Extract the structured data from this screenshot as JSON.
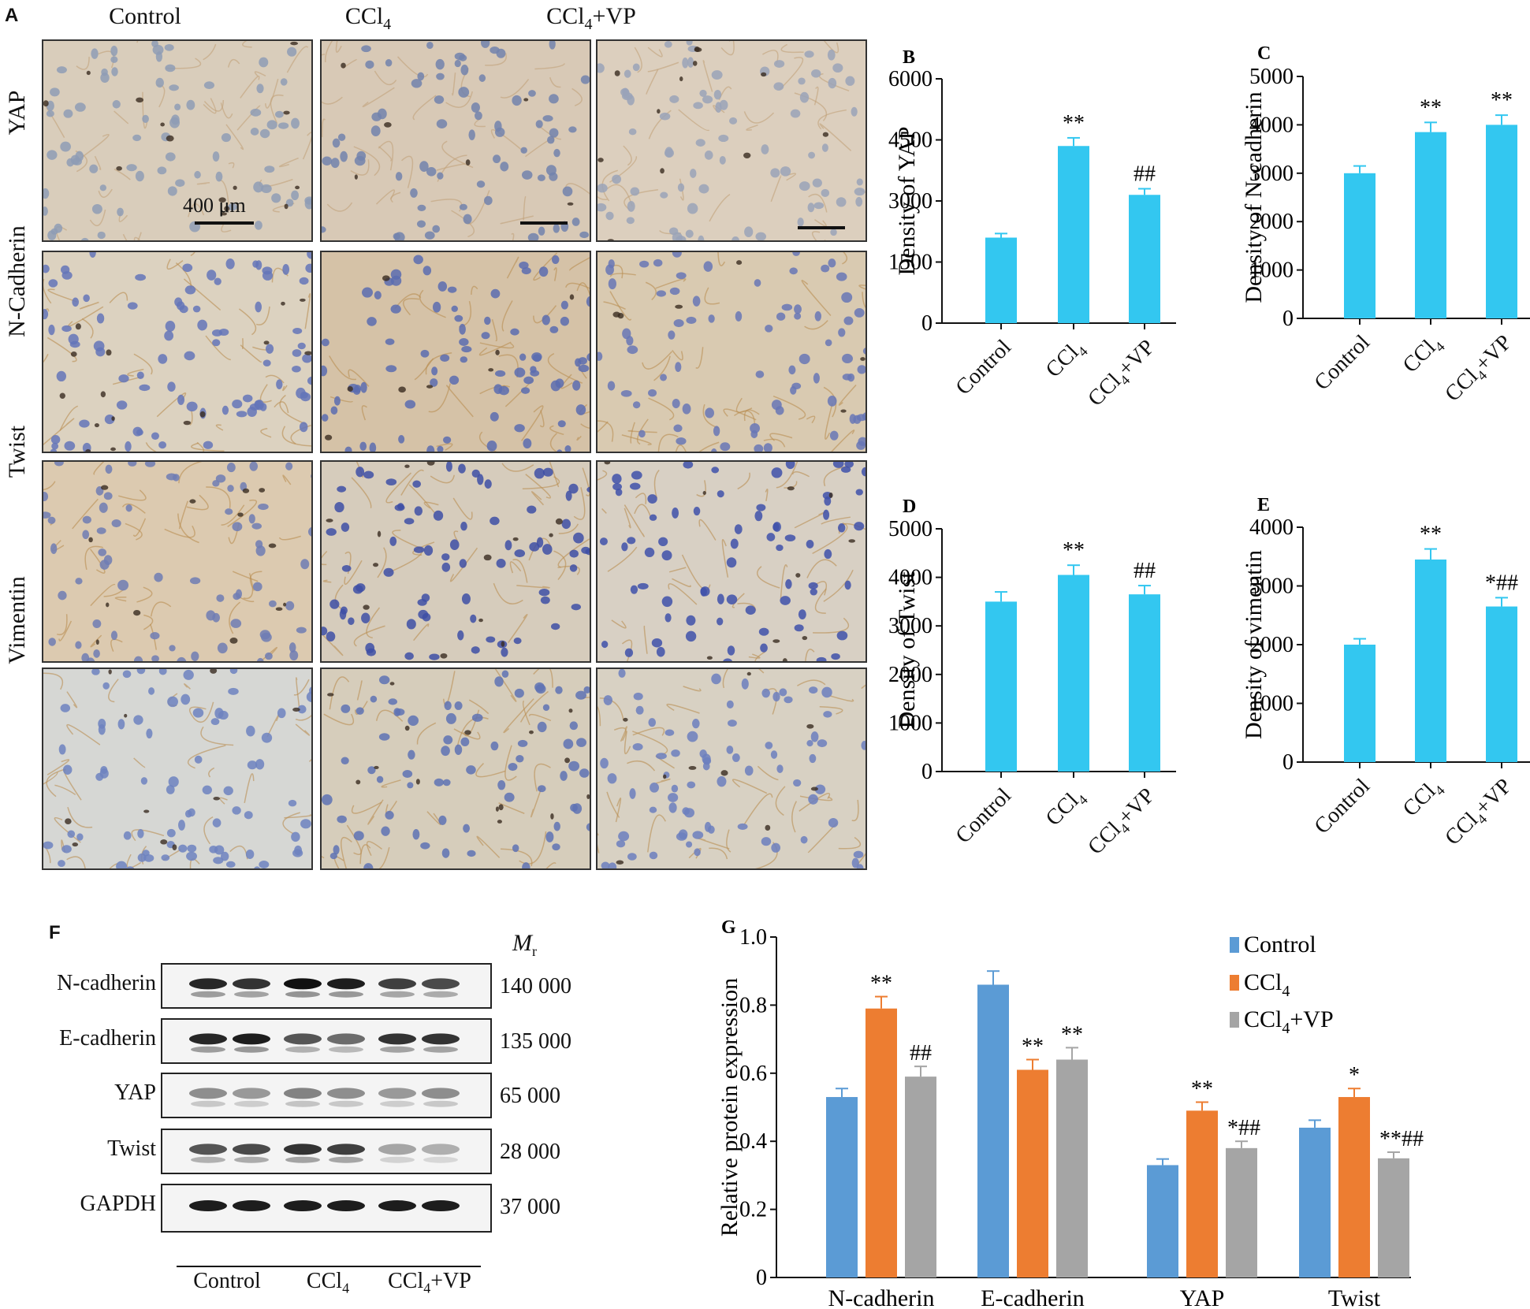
{
  "panelA": {
    "letter": "A",
    "columns": [
      "Control",
      "CCl4",
      "CCl4+VP"
    ],
    "rows": [
      "YAP",
      "N-Cadherin",
      "Twist",
      "Vimentin"
    ],
    "scale_label": "400 μm"
  },
  "colors": {
    "bar_cyan": "#33c7f0",
    "control": "#5b9bd5",
    "ccl4": "#ed7d31",
    "ccl4_vp": "#a5a5a5"
  },
  "chart_data": [
    {
      "letter": "B",
      "type": "bar",
      "categories": [
        "Control",
        "CCl4",
        "CCl4+VP"
      ],
      "values": [
        2100,
        4350,
        3150
      ],
      "errors": [
        100,
        200,
        150
      ],
      "sig": [
        "",
        "**",
        "##"
      ],
      "ylabel": "Density of YAP",
      "ylim": [
        0,
        6000
      ],
      "yticks": [
        0,
        1500,
        3000,
        4500,
        6000
      ],
      "color": "#33c7f0"
    },
    {
      "letter": "C",
      "type": "bar",
      "categories": [
        "Control",
        "CCl4",
        "CCl4+VP"
      ],
      "values": [
        3000,
        3850,
        4000
      ],
      "errors": [
        150,
        200,
        200
      ],
      "sig": [
        "",
        "**",
        "**"
      ],
      "ylabel": "Density of N-cadherin",
      "ylim": [
        0,
        5000
      ],
      "yticks": [
        0,
        1000,
        2000,
        3000,
        4000,
        5000
      ],
      "color": "#33c7f0"
    },
    {
      "letter": "D",
      "type": "bar",
      "categories": [
        "Control",
        "CCl4",
        "CCl4+VP"
      ],
      "values": [
        3500,
        4050,
        3650
      ],
      "errors": [
        200,
        200,
        180
      ],
      "sig": [
        "",
        "**",
        "##"
      ],
      "ylabel": "Density of Twist",
      "ylim": [
        0,
        5000
      ],
      "yticks": [
        0,
        1000,
        2000,
        3000,
        4000,
        5000
      ],
      "color": "#33c7f0"
    },
    {
      "letter": "E",
      "type": "bar",
      "categories": [
        "Control",
        "CCl4",
        "CCl4+VP"
      ],
      "values": [
        2000,
        3450,
        2650
      ],
      "errors": [
        100,
        180,
        150
      ],
      "sig": [
        "",
        "**",
        "*##"
      ],
      "ylabel": "Density of vimentin",
      "ylim": [
        0,
        4000
      ],
      "yticks": [
        0,
        1000,
        2000,
        3000,
        4000
      ],
      "color": "#33c7f0"
    },
    {
      "letter": "G",
      "type": "bar",
      "categories": [
        "N-cadherin",
        "E-cadherin",
        "YAP",
        "Twist"
      ],
      "series": [
        {
          "name": "Control",
          "values": [
            0.53,
            0.86,
            0.33,
            0.44
          ],
          "errors": [
            0.025,
            0.04,
            0.018,
            0.022
          ],
          "sig": [
            "",
            "",
            "",
            ""
          ]
        },
        {
          "name": "CCl4",
          "values": [
            0.79,
            0.61,
            0.49,
            0.53
          ],
          "errors": [
            0.035,
            0.03,
            0.025,
            0.025
          ],
          "sig": [
            "**",
            "**",
            "**",
            "*"
          ]
        },
        {
          "name": "CCl4+VP",
          "values": [
            0.59,
            0.64,
            0.38,
            0.35
          ],
          "errors": [
            0.03,
            0.035,
            0.02,
            0.018
          ],
          "sig": [
            "##",
            "**",
            "*##",
            "**##"
          ]
        }
      ],
      "ylabel": "Relative protein expression",
      "ylim": [
        0,
        1.0
      ],
      "yticks": [
        0,
        0.2,
        0.4,
        0.6,
        0.8,
        1.0
      ],
      "legend": "top-right"
    }
  ],
  "panelF": {
    "letter": "F",
    "mr_head": "Mr",
    "rows": [
      {
        "label": "N-cadherin",
        "mr": "140 000"
      },
      {
        "label": "E-cadherin",
        "mr": "135 000"
      },
      {
        "label": "YAP",
        "mr": "65 000"
      },
      {
        "label": "Twist",
        "mr": "28 000"
      },
      {
        "label": "GAPDH",
        "mr": "37 000"
      }
    ],
    "groups": [
      "Control",
      "CCl4",
      "CCl4+VP"
    ]
  }
}
